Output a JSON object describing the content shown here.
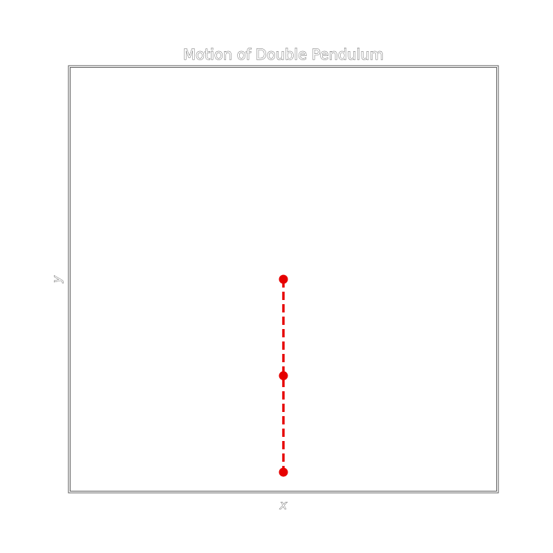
{
  "chart_data": {
    "type": "line",
    "title": "Motion of Double Pendulum",
    "xlabel": "x",
    "ylabel": "y",
    "xlim": [
      -2.2,
      2.2
    ],
    "ylim": [
      -2.2,
      2.2
    ],
    "grid": false,
    "series": [
      {
        "x": [
          0,
          0,
          0
        ],
        "y": [
          0,
          -1,
          -2
        ],
        "color": "#e60000",
        "linestyle": "dashed",
        "marker": "circle"
      }
    ]
  },
  "colors": {
    "series": "#e60000",
    "frame": "#555555",
    "text_outline": "#555555",
    "background": "#ffffff"
  }
}
